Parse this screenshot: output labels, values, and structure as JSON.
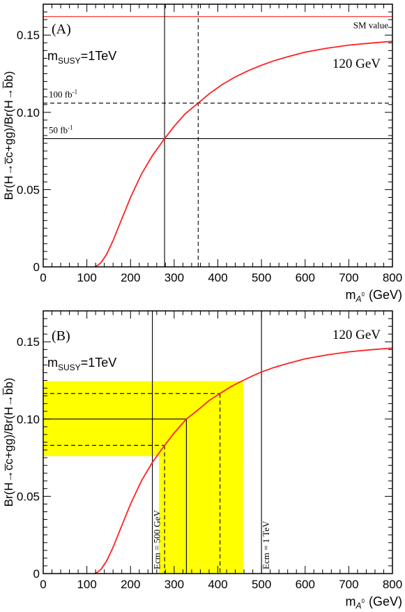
{
  "colors": {
    "curve": "#ff2020",
    "band": "#ffff00",
    "axis": "#000000"
  },
  "chart_data": [
    {
      "type": "line",
      "panel_label": "(A)",
      "xlabel_main": "m",
      "xlabel_sub": "A",
      "xlabel_sup": "0",
      "xlabel_unit": "(GeV)",
      "ylabel": "Br(H→c̅c+gg)/Br(H→b̅b)",
      "xlim": [
        0,
        800
      ],
      "ylim": [
        0,
        0.17
      ],
      "xticks": [
        0,
        100,
        200,
        300,
        400,
        500,
        600,
        700,
        800
      ],
      "xtick_labels": [
        "0",
        "100",
        "200",
        "300",
        "400",
        "500",
        "600",
        "700",
        "800"
      ],
      "yticks": [
        0,
        0.05,
        0.1,
        0.15
      ],
      "ytick_labels": [
        "0",
        "0.05",
        "0.10",
        "0.15"
      ],
      "msusy_main": "m",
      "msusy_sub": "SUSY",
      "msusy_value": "=1TeV",
      "curve_label": "120 GeV",
      "sm_line": {
        "y": 0.162,
        "label": "SM value"
      },
      "hlines": [
        {
          "y": 0.106,
          "style": "dashed",
          "label": "100 fb",
          "sup": "-1"
        },
        {
          "y": 0.083,
          "style": "solid",
          "label": "50 fb",
          "sup": "-1"
        }
      ],
      "vlines": [
        {
          "x": 278,
          "style": "solid",
          "ymax": 0.17
        },
        {
          "x": 355,
          "style": "dashed",
          "ymax": 0.17
        }
      ],
      "series": [
        {
          "x": [
            118,
            125,
            133,
            145,
            160,
            180,
            200,
            225,
            250,
            278,
            300,
            325,
            355,
            380,
            410,
            440,
            470,
            500,
            530,
            560,
            600,
            650,
            700,
            750,
            800
          ],
          "y": [
            0,
            0.001,
            0.003,
            0.008,
            0.017,
            0.031,
            0.045,
            0.06,
            0.072,
            0.083,
            0.091,
            0.099,
            0.106,
            0.112,
            0.118,
            0.123,
            0.127,
            0.1305,
            0.1335,
            0.136,
            0.139,
            0.1415,
            0.1435,
            0.1448,
            0.146
          ]
        }
      ]
    },
    {
      "type": "line",
      "panel_label": "(B)",
      "xlabel_main": "m",
      "xlabel_sub": "A",
      "xlabel_sup": "0",
      "xlabel_unit": "(GeV)",
      "ylabel": "Br(H→c̅c+gg)/Br(H→b̅b)",
      "xlim": [
        0,
        800
      ],
      "ylim": [
        0,
        0.17
      ],
      "xticks": [
        0,
        100,
        200,
        300,
        400,
        500,
        600,
        700,
        800
      ],
      "xtick_labels": [
        "0",
        "100",
        "200",
        "300",
        "400",
        "500",
        "600",
        "700",
        "800"
      ],
      "yticks": [
        0,
        0.05,
        0.1,
        0.15
      ],
      "ytick_labels": [
        "0",
        "0.05",
        "0.10",
        "0.15"
      ],
      "msusy_main": "m",
      "msusy_sub": "SUSY",
      "msusy_value": "=1TeV",
      "curve_label": "120 GeV",
      "band_horizontal": {
        "x0": 0,
        "x1": 458,
        "y0": 0.076,
        "y1": 0.1245
      },
      "band_vertical": {
        "x0": 265,
        "x1": 458,
        "y0": 0,
        "y1": 0.1245
      },
      "ecm_lines": [
        {
          "x": 250,
          "label": "Ecm = 500 GeV"
        },
        {
          "x": 500,
          "label": "Ecm = 1 TeV"
        }
      ],
      "central_point": {
        "x": 328,
        "y": 0.1
      },
      "error_point_low": {
        "x": 278,
        "y": 0.083
      },
      "error_point_high": {
        "x": 405,
        "y": 0.1165
      },
      "series": [
        {
          "x": [
            118,
            125,
            133,
            145,
            160,
            180,
            200,
            225,
            250,
            278,
            300,
            328,
            355,
            380,
            405,
            430,
            458,
            480,
            500,
            530,
            560,
            600,
            650,
            700,
            750,
            800
          ],
          "y": [
            0,
            0.001,
            0.003,
            0.008,
            0.017,
            0.031,
            0.045,
            0.06,
            0.072,
            0.083,
            0.091,
            0.1,
            0.106,
            0.112,
            0.1165,
            0.121,
            0.125,
            0.128,
            0.1305,
            0.1335,
            0.136,
            0.139,
            0.1415,
            0.1435,
            0.1448,
            0.146
          ]
        }
      ]
    }
  ]
}
